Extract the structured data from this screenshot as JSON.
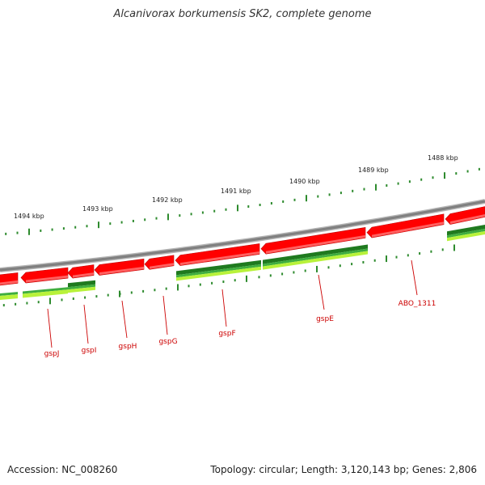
{
  "title": "Alcanivorax borkumensis SK2, complete genome",
  "footer": {
    "accession": "Accession: NC_008260",
    "summary": "Topology: circular; Length: 3,120,143 bp; Genes: 2,806"
  },
  "ruler_labels": [
    "1494 kbp",
    "1493 kbp",
    "1492 kbp",
    "1491 kbp",
    "1490 kbp",
    "1489 kbp",
    "1488 kbp"
  ],
  "gene_labels": [
    "gspJ",
    "gspI",
    "gspH",
    "gspG",
    "gspF",
    "gspE",
    "ABO_1311"
  ],
  "colors": {
    "backbone": "#808080",
    "gene_red": "#ff0000",
    "gene_red_dark": "#c00000",
    "gene_red_light": "#ff8080",
    "green_dark": "#1f7a1f",
    "green_mid": "#3fae3f",
    "green_light": "#b8f23a",
    "tick": "#2e8b2e",
    "label_red": "#cc0000"
  }
}
